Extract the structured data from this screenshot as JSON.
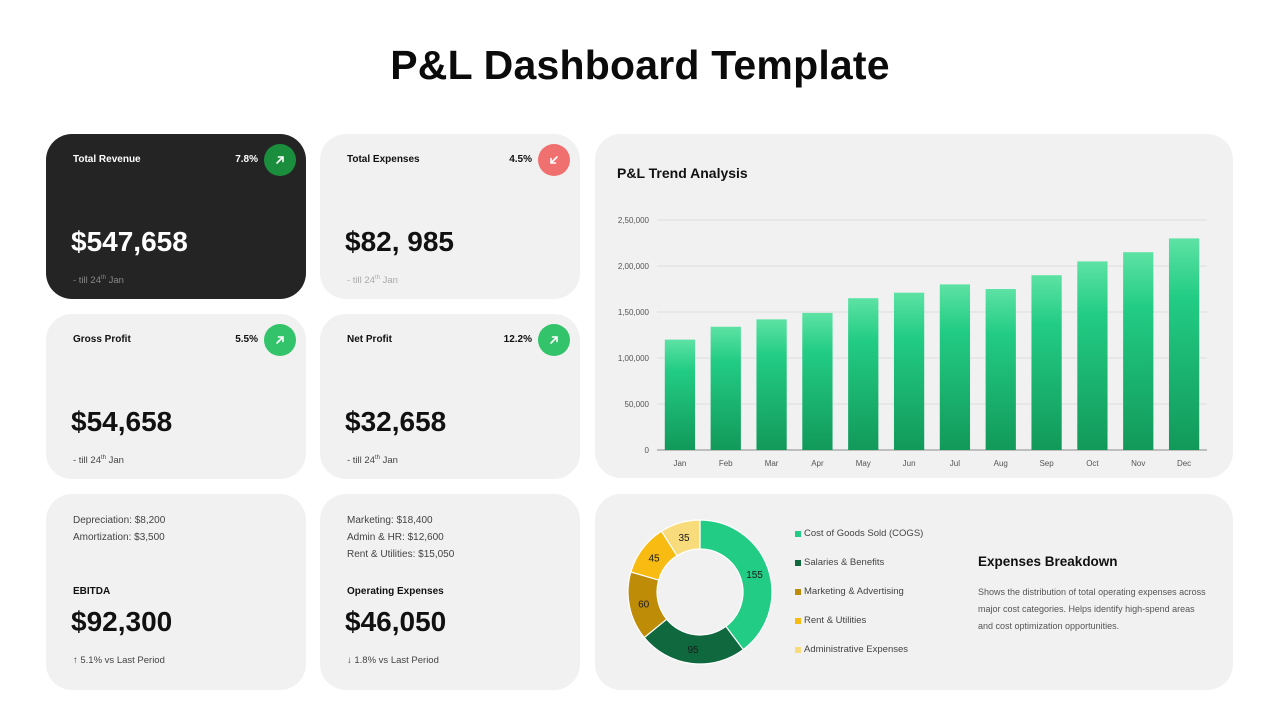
{
  "page": {
    "title": "P&L Dashboard Template"
  },
  "kpis": {
    "revenue": {
      "label": "Total Revenue",
      "pct": "7.8%",
      "value": "$547,658",
      "foot_pre": "- till 24",
      "foot_sup": "th",
      "foot_post": " Jan",
      "arrow_icon": "arrow-up-right-icon"
    },
    "expenses": {
      "label": "Total Expenses",
      "pct": "4.5%",
      "value": "$82, 985",
      "foot_pre": "- till 24",
      "foot_sup": "th",
      "foot_post": " Jan",
      "arrow_icon": "arrow-down-left-icon"
    },
    "gross": {
      "label": "Gross Profit",
      "pct": "5.5%",
      "value": "$54,658",
      "foot_pre": "- till 24",
      "foot_sup": "th",
      "foot_post": " Jan",
      "arrow_icon": "arrow-up-right-icon"
    },
    "net": {
      "label": "Net Profit",
      "pct": "12.2%",
      "value": "$32,658",
      "foot_pre": "- till 24",
      "foot_sup": "th",
      "foot_post": " Jan",
      "arrow_icon": "arrow-up-right-icon"
    }
  },
  "ebitda": {
    "lines": [
      "Depreciation:  $8,200",
      "Amortization:  $3,500"
    ],
    "label": "EBITDA",
    "value": "$92,300",
    "change": "↑ 5.1% vs Last Period"
  },
  "opex": {
    "lines": [
      "Marketing: $18,400",
      "Admin & HR: $12,600",
      "Rent & Utilities: $15,050"
    ],
    "label": "Operating Expenses",
    "value": "$46,050",
    "change": "↓ 1.8% vs Last Period"
  },
  "colors": {
    "green_light": "#33c36a",
    "green_dark": "#1b8e3e",
    "red": "#f07070",
    "bar_top": "#5de2a4",
    "bar_bottom": "#12995a"
  },
  "chart_data": [
    {
      "type": "bar",
      "title": "P&L Trend Analysis",
      "categories": [
        "Jan",
        "Feb",
        "Mar",
        "Apr",
        "May",
        "Jun",
        "Jul",
        "Aug",
        "Sep",
        "Oct",
        "Nov",
        "Dec"
      ],
      "values": [
        120000,
        134000,
        142000,
        149000,
        165000,
        171000,
        180000,
        175000,
        190000,
        205000,
        215000,
        230000
      ],
      "ylim": [
        0,
        250000
      ],
      "yticks": [
        0,
        50000,
        100000,
        150000,
        200000,
        250000
      ],
      "ytick_labels": [
        "0",
        "50,000",
        "1,00,000",
        "1,50,000",
        "2,00,000",
        "2,50,000"
      ],
      "grid": true
    },
    {
      "type": "pie",
      "title": "Expenses Breakdown",
      "description": "Shows the distribution of total operating expenses across major cost categories. Helps identify high-spend areas and cost optimization opportunities.",
      "slices": [
        {
          "name": "Cost of Goods Sold (COGS)",
          "value": 155,
          "color": "#22cc84"
        },
        {
          "name": "Salaries & Benefits",
          "value": 95,
          "color": "#10683f"
        },
        {
          "name": "Marketing & Advertising",
          "value": 60,
          "color": "#bf8c07"
        },
        {
          "name": "Rent & Utilities",
          "value": 45,
          "color": "#f7bb12"
        },
        {
          "name": "Administrative Expenses",
          "value": 35,
          "color": "#f8dc7c"
        }
      ],
      "legend": "right"
    }
  ]
}
